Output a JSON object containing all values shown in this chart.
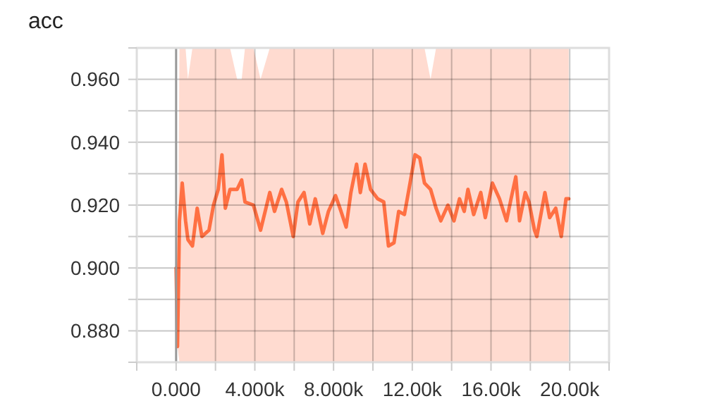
{
  "chart_data": {
    "type": "line",
    "title": "acc",
    "xlim": [
      -2000,
      22000
    ],
    "xticks": [
      {
        "value": -2000,
        "label": null
      },
      {
        "value": 0,
        "label": "0.000"
      },
      {
        "value": 2000,
        "label": null
      },
      {
        "value": 4000,
        "label": "4.000k"
      },
      {
        "value": 6000,
        "label": null
      },
      {
        "value": 8000,
        "label": "8.000k"
      },
      {
        "value": 10000,
        "label": null
      },
      {
        "value": 12000,
        "label": "12.00k"
      },
      {
        "value": 14000,
        "label": null
      },
      {
        "value": 16000,
        "label": "16.00k"
      },
      {
        "value": 18000,
        "label": null
      },
      {
        "value": 20000,
        "label": "20.00k"
      },
      {
        "value": 22000,
        "label": null
      }
    ],
    "ylim": [
      0.87,
      0.97
    ],
    "yticks": [
      {
        "value": 0.87,
        "label": null
      },
      {
        "value": 0.88,
        "label": "0.880"
      },
      {
        "value": 0.89,
        "label": null
      },
      {
        "value": 0.9,
        "label": "0.900"
      },
      {
        "value": 0.91,
        "label": null
      },
      {
        "value": 0.92,
        "label": "0.920"
      },
      {
        "value": 0.93,
        "label": null
      },
      {
        "value": 0.94,
        "label": "0.940"
      },
      {
        "value": 0.95,
        "label": null
      },
      {
        "value": 0.96,
        "label": "0.960"
      },
      {
        "value": 0.97,
        "label": null
      }
    ],
    "grid": true,
    "x": [
      0,
      70,
      170,
      310,
      480,
      600,
      830,
      1070,
      1310,
      1670,
      1900,
      2140,
      2330,
      2500,
      2740,
      3100,
      3330,
      3500,
      3930,
      4290,
      4760,
      5000,
      5360,
      5600,
      5950,
      6190,
      6500,
      6790,
      7070,
      7450,
      7740,
      8100,
      8380,
      8640,
      8880,
      9170,
      9360,
      9600,
      9880,
      10240,
      10550,
      10790,
      11070,
      11310,
      11600,
      11830,
      12140,
      12380,
      12620,
      12930,
      13210,
      13450,
      13810,
      14120,
      14400,
      14640,
      14830,
      15120,
      15480,
      15710,
      16070,
      16430,
      16790,
      17020,
      17260,
      17450,
      17740,
      17930,
      18210,
      18330,
      18740,
      18980,
      19290,
      19570,
      19810,
      19950
    ],
    "series": [
      {
        "color": "#ff7043",
        "values": [
          0.9,
          0.875,
          0.915,
          0.927,
          0.915,
          0.909,
          0.907,
          0.919,
          0.91,
          0.912,
          0.92,
          0.925,
          0.936,
          0.919,
          0.925,
          0.925,
          0.928,
          0.921,
          0.92,
          0.912,
          0.924,
          0.918,
          0.925,
          0.921,
          0.91,
          0.921,
          0.924,
          0.914,
          0.922,
          0.911,
          0.918,
          0.923,
          0.918,
          0.913,
          0.924,
          0.933,
          0.924,
          0.933,
          0.925,
          0.922,
          0.921,
          0.907,
          0.908,
          0.918,
          0.917,
          0.925,
          0.936,
          0.935,
          0.927,
          0.925,
          0.919,
          0.915,
          0.92,
          0.915,
          0.922,
          0.918,
          0.925,
          0.917,
          0.924,
          0.916,
          0.927,
          0.922,
          0.915,
          0.922,
          0.929,
          0.915,
          0.924,
          0.921,
          0.912,
          0.91,
          0.924,
          0.916,
          0.919,
          0.91,
          0.922,
          0.922
        ],
        "lower": [
          0.9,
          0.875,
          0.87,
          0.87,
          0.87,
          0.87,
          0.87,
          0.87,
          0.87,
          0.87,
          0.87,
          0.87,
          0.87,
          0.87,
          0.87,
          0.87,
          0.87,
          0.87,
          0.87,
          0.87,
          0.87,
          0.87,
          0.87,
          0.87,
          0.87,
          0.87,
          0.87,
          0.87,
          0.87,
          0.87,
          0.87,
          0.87,
          0.87,
          0.87,
          0.87,
          0.87,
          0.87,
          0.87,
          0.87,
          0.87,
          0.87,
          0.87,
          0.87,
          0.87,
          0.87,
          0.87,
          0.87,
          0.87,
          0.87,
          0.87,
          0.87,
          0.87,
          0.87,
          0.87,
          0.87,
          0.87,
          0.87,
          0.87,
          0.87,
          0.87,
          0.87,
          0.87,
          0.87,
          0.87,
          0.87,
          0.87,
          0.87,
          0.87,
          0.87,
          0.87,
          0.87,
          0.87,
          0.87,
          0.87,
          0.87,
          0.87
        ],
        "upper": [
          0.9,
          0.875,
          0.97,
          0.97,
          0.97,
          0.96,
          0.97,
          0.97,
          0.97,
          0.97,
          0.97,
          0.97,
          0.97,
          0.97,
          0.97,
          0.96,
          0.96,
          0.97,
          0.97,
          0.96,
          0.97,
          0.97,
          0.97,
          0.97,
          0.97,
          0.97,
          0.97,
          0.97,
          0.97,
          0.97,
          0.97,
          0.97,
          0.97,
          0.97,
          0.97,
          0.97,
          0.97,
          0.97,
          0.97,
          0.97,
          0.97,
          0.97,
          0.97,
          0.97,
          0.97,
          0.97,
          0.97,
          0.97,
          0.97,
          0.96,
          0.97,
          0.97,
          0.97,
          0.97,
          0.97,
          0.97,
          0.97,
          0.97,
          0.97,
          0.97,
          0.97,
          0.97,
          0.97,
          0.97,
          0.97,
          0.97,
          0.97,
          0.97,
          0.97,
          0.97,
          0.97,
          0.97,
          0.97,
          0.97,
          0.97,
          0.97
        ]
      }
    ]
  }
}
